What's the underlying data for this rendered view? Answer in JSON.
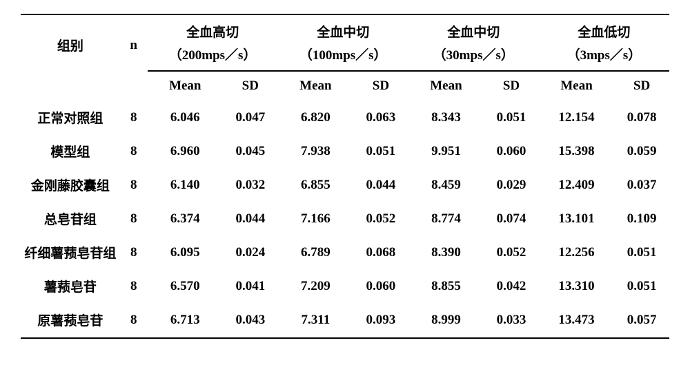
{
  "table": {
    "header": {
      "group": "组别",
      "n": "n",
      "cols": [
        {
          "title": "全血高切",
          "unit": "（200mps／s）"
        },
        {
          "title": "全血中切",
          "unit": "（100mps／s）"
        },
        {
          "title": "全血中切",
          "unit": "（30mps／s）"
        },
        {
          "title": "全血低切",
          "unit": "（3mps／s）"
        }
      ],
      "sub_mean": "Mean",
      "sub_sd": "SD"
    },
    "rows": [
      {
        "group": "正常对照组",
        "n": "8",
        "c1m": "6.046",
        "c1s": "0.047",
        "c2m": "6.820",
        "c2s": "0.063",
        "c3m": "8.343",
        "c3s": "0.051",
        "c4m": "12.154",
        "c4s": "0.078"
      },
      {
        "group": "模型组",
        "n": "8",
        "c1m": "6.960",
        "c1s": "0.045",
        "c2m": "7.938",
        "c2s": "0.051",
        "c3m": "9.951",
        "c3s": "0.060",
        "c4m": "15.398",
        "c4s": "0.059"
      },
      {
        "group": "金刚藤胶囊组",
        "n": "8",
        "c1m": "6.140",
        "c1s": "0.032",
        "c2m": "6.855",
        "c2s": "0.044",
        "c3m": "8.459",
        "c3s": "0.029",
        "c4m": "12.409",
        "c4s": "0.037"
      },
      {
        "group": "总皂苷组",
        "n": "8",
        "c1m": "6.374",
        "c1s": "0.044",
        "c2m": "7.166",
        "c2s": "0.052",
        "c3m": "8.774",
        "c3s": "0.074",
        "c4m": "13.101",
        "c4s": "0.109"
      },
      {
        "group": "纤细薯蓣皂苷组",
        "n": "8",
        "c1m": "6.095",
        "c1s": "0.024",
        "c2m": "6.789",
        "c2s": "0.068",
        "c3m": "8.390",
        "c3s": "0.052",
        "c4m": "12.256",
        "c4s": "0.051"
      },
      {
        "group": "薯蓣皂苷",
        "n": "8",
        "c1m": "6.570",
        "c1s": "0.041",
        "c2m": "7.209",
        "c2s": "0.060",
        "c3m": "8.855",
        "c3s": "0.042",
        "c4m": "13.310",
        "c4s": "0.051"
      },
      {
        "group": "原薯蓣皂苷",
        "n": "8",
        "c1m": "6.713",
        "c1s": "0.043",
        "c2m": "7.311",
        "c2s": "0.093",
        "c3m": "8.999",
        "c3s": "0.033",
        "c4m": "13.473",
        "c4s": "0.057"
      }
    ]
  }
}
